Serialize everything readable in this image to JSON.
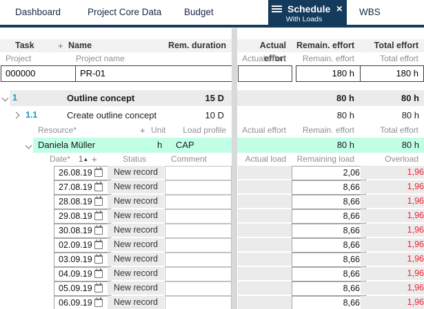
{
  "tabs": {
    "items": [
      {
        "label": "Dashboard"
      },
      {
        "label": "Project Core Data"
      },
      {
        "label": "Budget"
      },
      {
        "label": "Schedule",
        "sublabel": "With Loads",
        "close_icon": "✕",
        "active": true
      },
      {
        "label": "WBS"
      }
    ]
  },
  "colors": {
    "accent_navy": "#143a5c",
    "task_number_blue": "#0f97d4",
    "resource_highlight_green": "#c0ffe6",
    "overload_red": "#ee2433",
    "row_gray": "#ebebeb"
  },
  "task_table": {
    "header": {
      "task": "Task",
      "plus": "+",
      "name": "Name",
      "rem_duration": "Rem. duration",
      "actual_effort": "Actual effort",
      "remain_effort": "Remain. effort",
      "total_effort": "Total effort"
    },
    "subheader": {
      "project": "Project",
      "project_name": "Project name",
      "actual_effort": "Actual effort",
      "remain_effort": "Remain. effort",
      "total_effort": "Total effort"
    },
    "project_row": {
      "id": "000000",
      "name": "PR-01",
      "actual": "",
      "remain": "180 h",
      "total": "180 h"
    },
    "rows": [
      {
        "num": "1",
        "name": "Outline concept",
        "duration": "15 D",
        "actual": "",
        "remain": "80 h",
        "total": "80 h"
      },
      {
        "num": "1.1",
        "name": "Create outline concept",
        "duration": "10 D",
        "actual": "",
        "remain": "80 h",
        "total": "80 h"
      }
    ]
  },
  "resource_table": {
    "header": {
      "resource": "Resource*",
      "plus": "+",
      "unit": "Unit",
      "load_profile": "Load profile",
      "actual_effort": "Actual effort",
      "remain_effort": "Remain. effort",
      "total_effort": "Total effort"
    },
    "resource_row": {
      "name": "Daniela Müller",
      "unit": "h",
      "load_profile": "CAP",
      "actual": "",
      "remain": "80 h",
      "total": "80 h"
    }
  },
  "load_table": {
    "header": {
      "date": "Date*",
      "sort_number": "1",
      "sort_icon": "▲",
      "plus": "+",
      "status": "Status",
      "comment": "Comment",
      "actual_load": "Actual load",
      "remaining_load": "Remaining load",
      "overload": "Overload"
    },
    "rows": [
      {
        "date": "26.08.19",
        "status": "New record",
        "comment": "",
        "actual": "",
        "remaining": "2,06",
        "overload": "1,96"
      },
      {
        "date": "27.08.19",
        "status": "New record",
        "comment": "",
        "actual": "",
        "remaining": "8,66",
        "overload": "1,96"
      },
      {
        "date": "28.08.19",
        "status": "New record",
        "comment": "",
        "actual": "",
        "remaining": "8,66",
        "overload": "1,96"
      },
      {
        "date": "29.08.19",
        "status": "New record",
        "comment": "",
        "actual": "",
        "remaining": "8,66",
        "overload": "1,96"
      },
      {
        "date": "30.08.19",
        "status": "New record",
        "comment": "",
        "actual": "",
        "remaining": "8,66",
        "overload": "1,96"
      },
      {
        "date": "02.09.19",
        "status": "New record",
        "comment": "",
        "actual": "",
        "remaining": "8,66",
        "overload": "1,96"
      },
      {
        "date": "03.09.19",
        "status": "New record",
        "comment": "",
        "actual": "",
        "remaining": "8,66",
        "overload": "1,96"
      },
      {
        "date": "04.09.19",
        "status": "New record",
        "comment": "",
        "actual": "",
        "remaining": "8,66",
        "overload": "1,96"
      },
      {
        "date": "05.09.19",
        "status": "New record",
        "comment": "",
        "actual": "",
        "remaining": "8,66",
        "overload": "1,96"
      },
      {
        "date": "06.09.19",
        "status": "New record",
        "comment": "",
        "actual": "",
        "remaining": "8,66",
        "overload": "1,96"
      }
    ]
  }
}
